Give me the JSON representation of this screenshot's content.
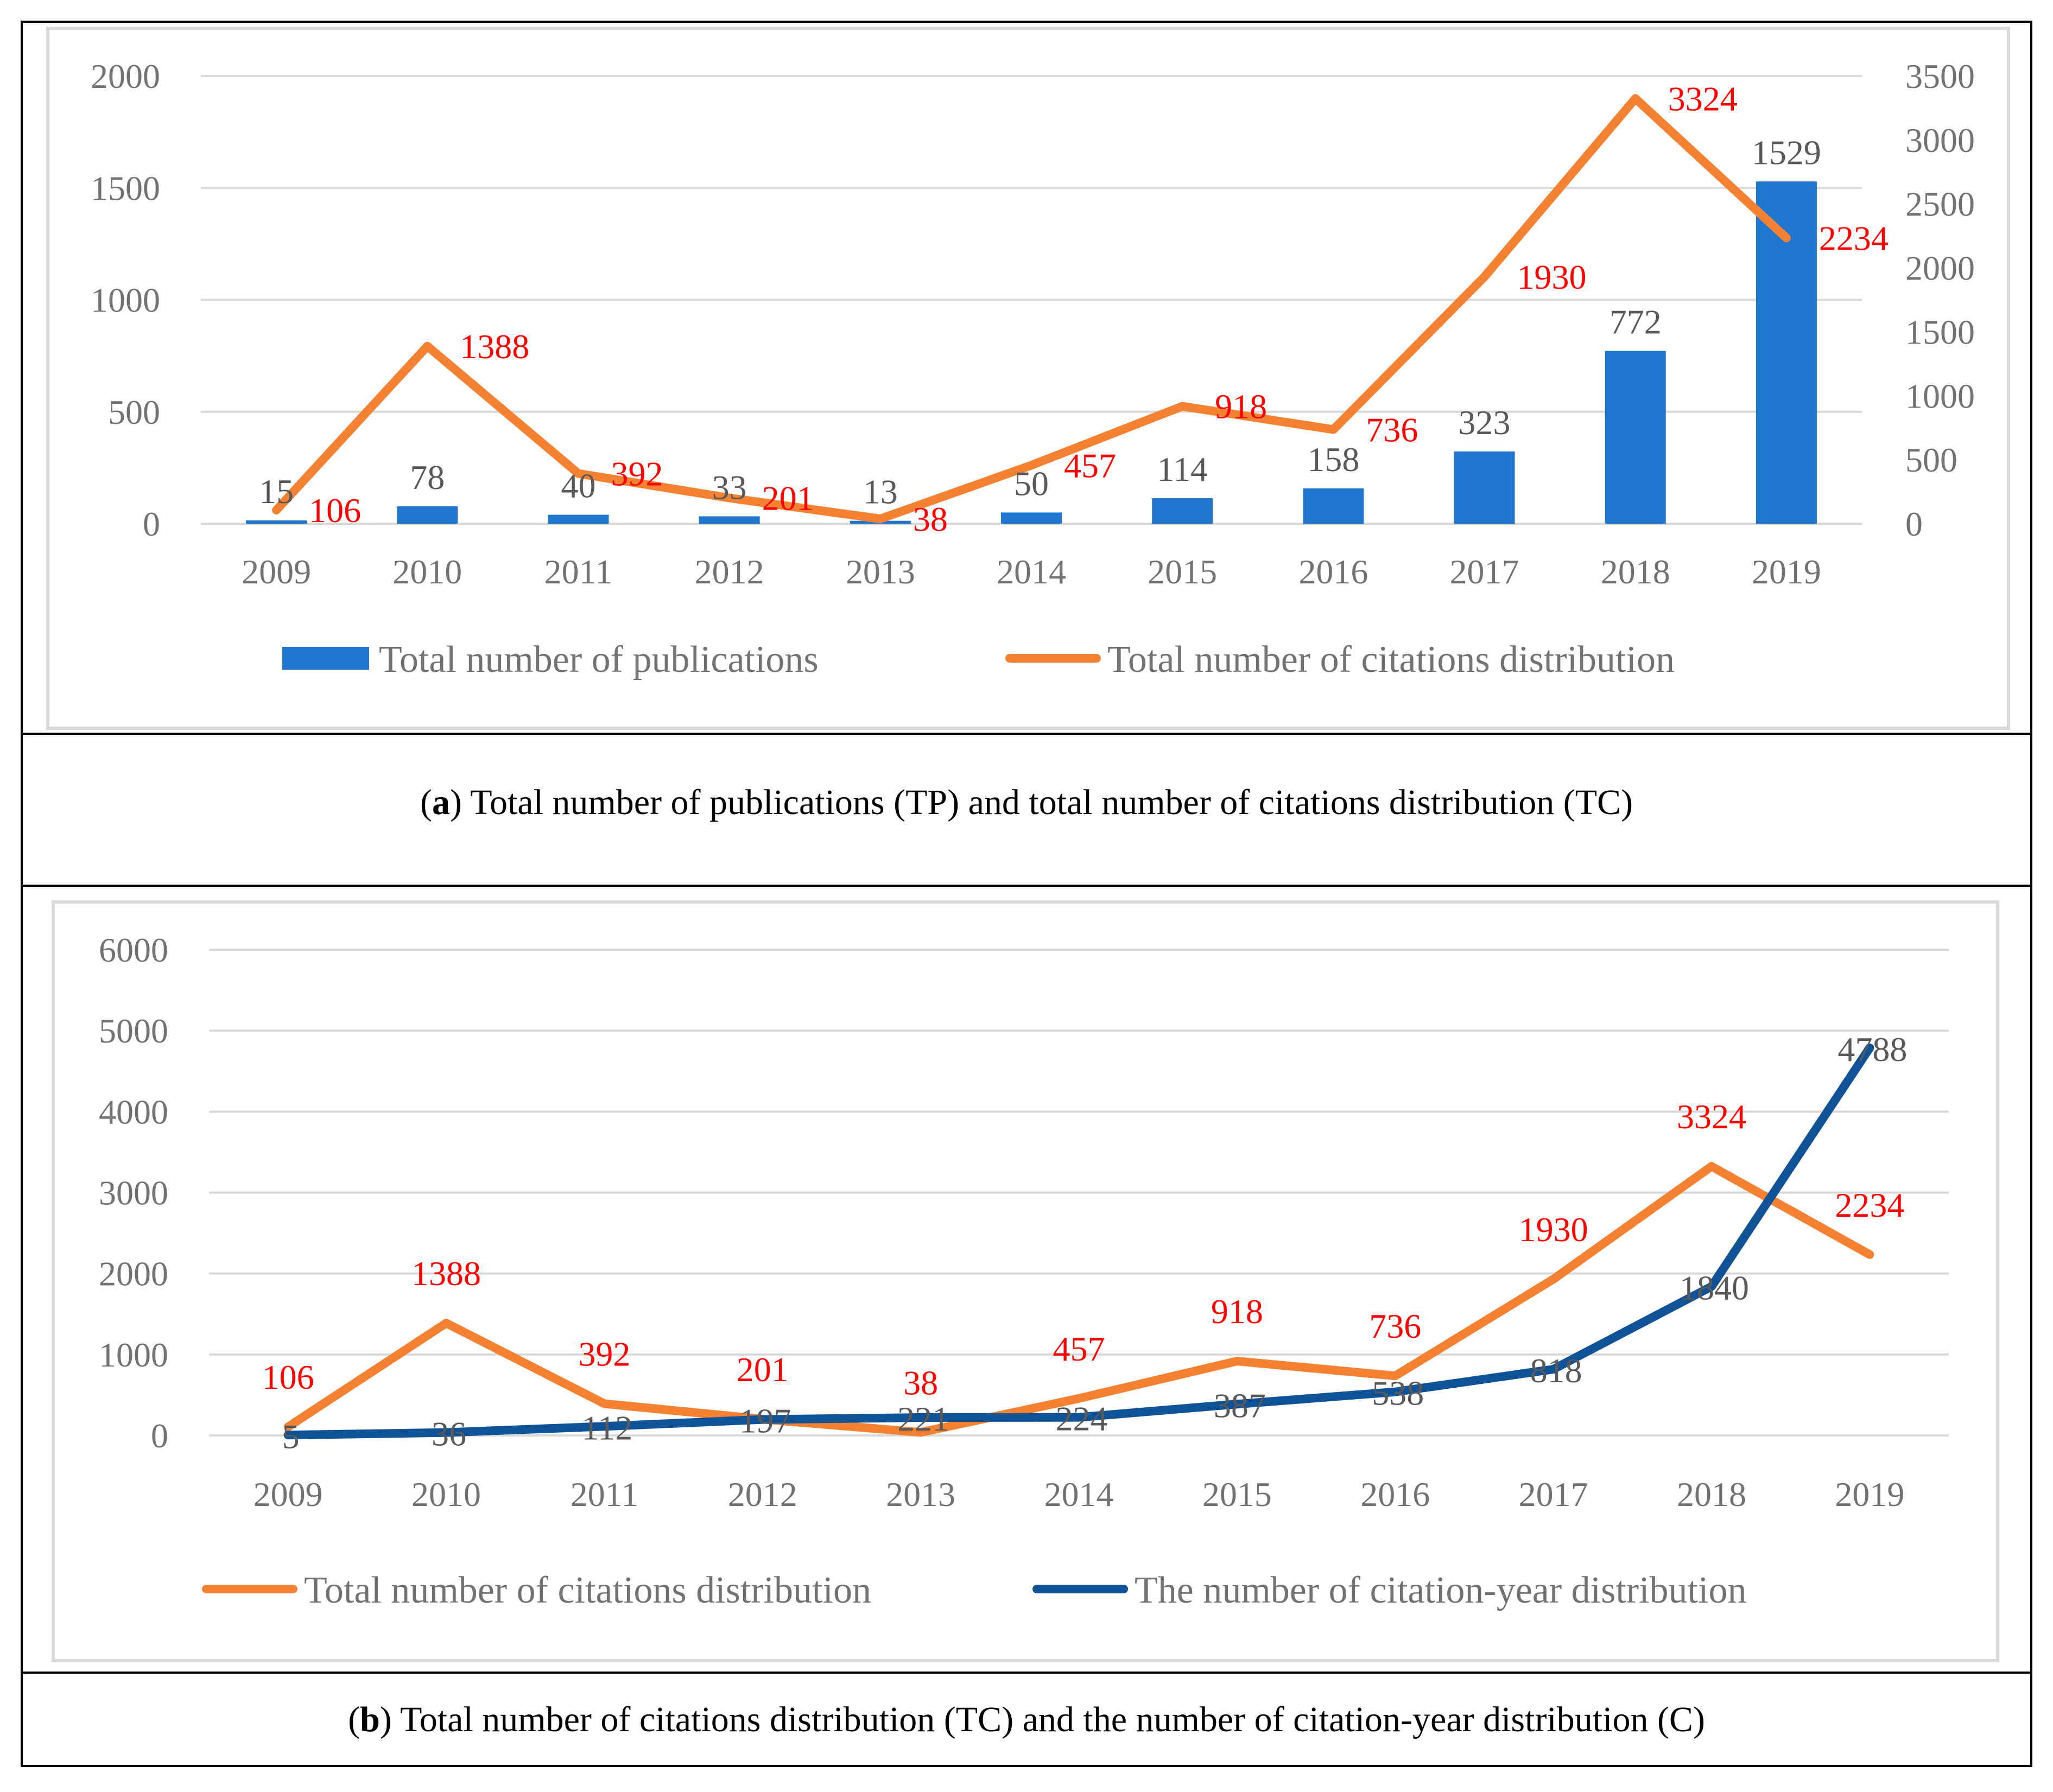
{
  "colors": {
    "bar": "#1f77d0",
    "citations_line": "#f58232",
    "citation_year_line": "#0f5296",
    "red_label": "#ff0000",
    "gray_text": "#767171"
  },
  "chart_data": [
    {
      "type": "bar+line",
      "panel": "a",
      "caption_letter": "a",
      "caption": "Total number of publications (TP) and total number of citations distribution (TC)",
      "categories": [
        "2009",
        "2010",
        "2011",
        "2012",
        "2013",
        "2014",
        "2015",
        "2016",
        "2017",
        "2018",
        "2019"
      ],
      "yticks_left": [
        "0",
        "500",
        "1000",
        "1500",
        "2000"
      ],
      "yticks_right": [
        "0",
        "500",
        "1000",
        "1500",
        "2000",
        "2500",
        "3000",
        "3500"
      ],
      "ylim_left": [
        0,
        2000
      ],
      "ylim_right": [
        0,
        3500
      ],
      "series": [
        {
          "name": "Total number of publications",
          "kind": "bar",
          "axis": "left",
          "values": [
            15,
            78,
            40,
            33,
            13,
            50,
            114,
            158,
            323,
            772,
            1529
          ]
        },
        {
          "name": "Total number of citations distribution",
          "kind": "line",
          "axis": "right",
          "values": [
            106,
            1388,
            392,
            201,
            38,
            457,
            918,
            736,
            1930,
            3324,
            2234
          ]
        }
      ],
      "legend": [
        "Total number of publications",
        "Total number of citations distribution"
      ]
    },
    {
      "type": "line",
      "panel": "b",
      "caption_letter": "b",
      "caption": "Total number of citations distribution (TC) and the number of citation-year distribution (C)",
      "categories": [
        "2009",
        "2010",
        "2011",
        "2012",
        "2013",
        "2014",
        "2015",
        "2016",
        "2017",
        "2018",
        "2019"
      ],
      "yticks": [
        "0",
        "1000",
        "2000",
        "3000",
        "4000",
        "5000",
        "6000"
      ],
      "ylim": [
        0,
        6000
      ],
      "series": [
        {
          "name": "Total number of citations distribution",
          "values": [
            106,
            1388,
            392,
            201,
            38,
            457,
            918,
            736,
            1930,
            3324,
            2234
          ]
        },
        {
          "name": "The number of citation-year distribution",
          "values": [
            5,
            36,
            112,
            197,
            221,
            224,
            387,
            538,
            818,
            1840,
            4788
          ]
        }
      ],
      "legend": [
        "Total number of citations distribution",
        "The number of citation-year distribution"
      ]
    }
  ]
}
